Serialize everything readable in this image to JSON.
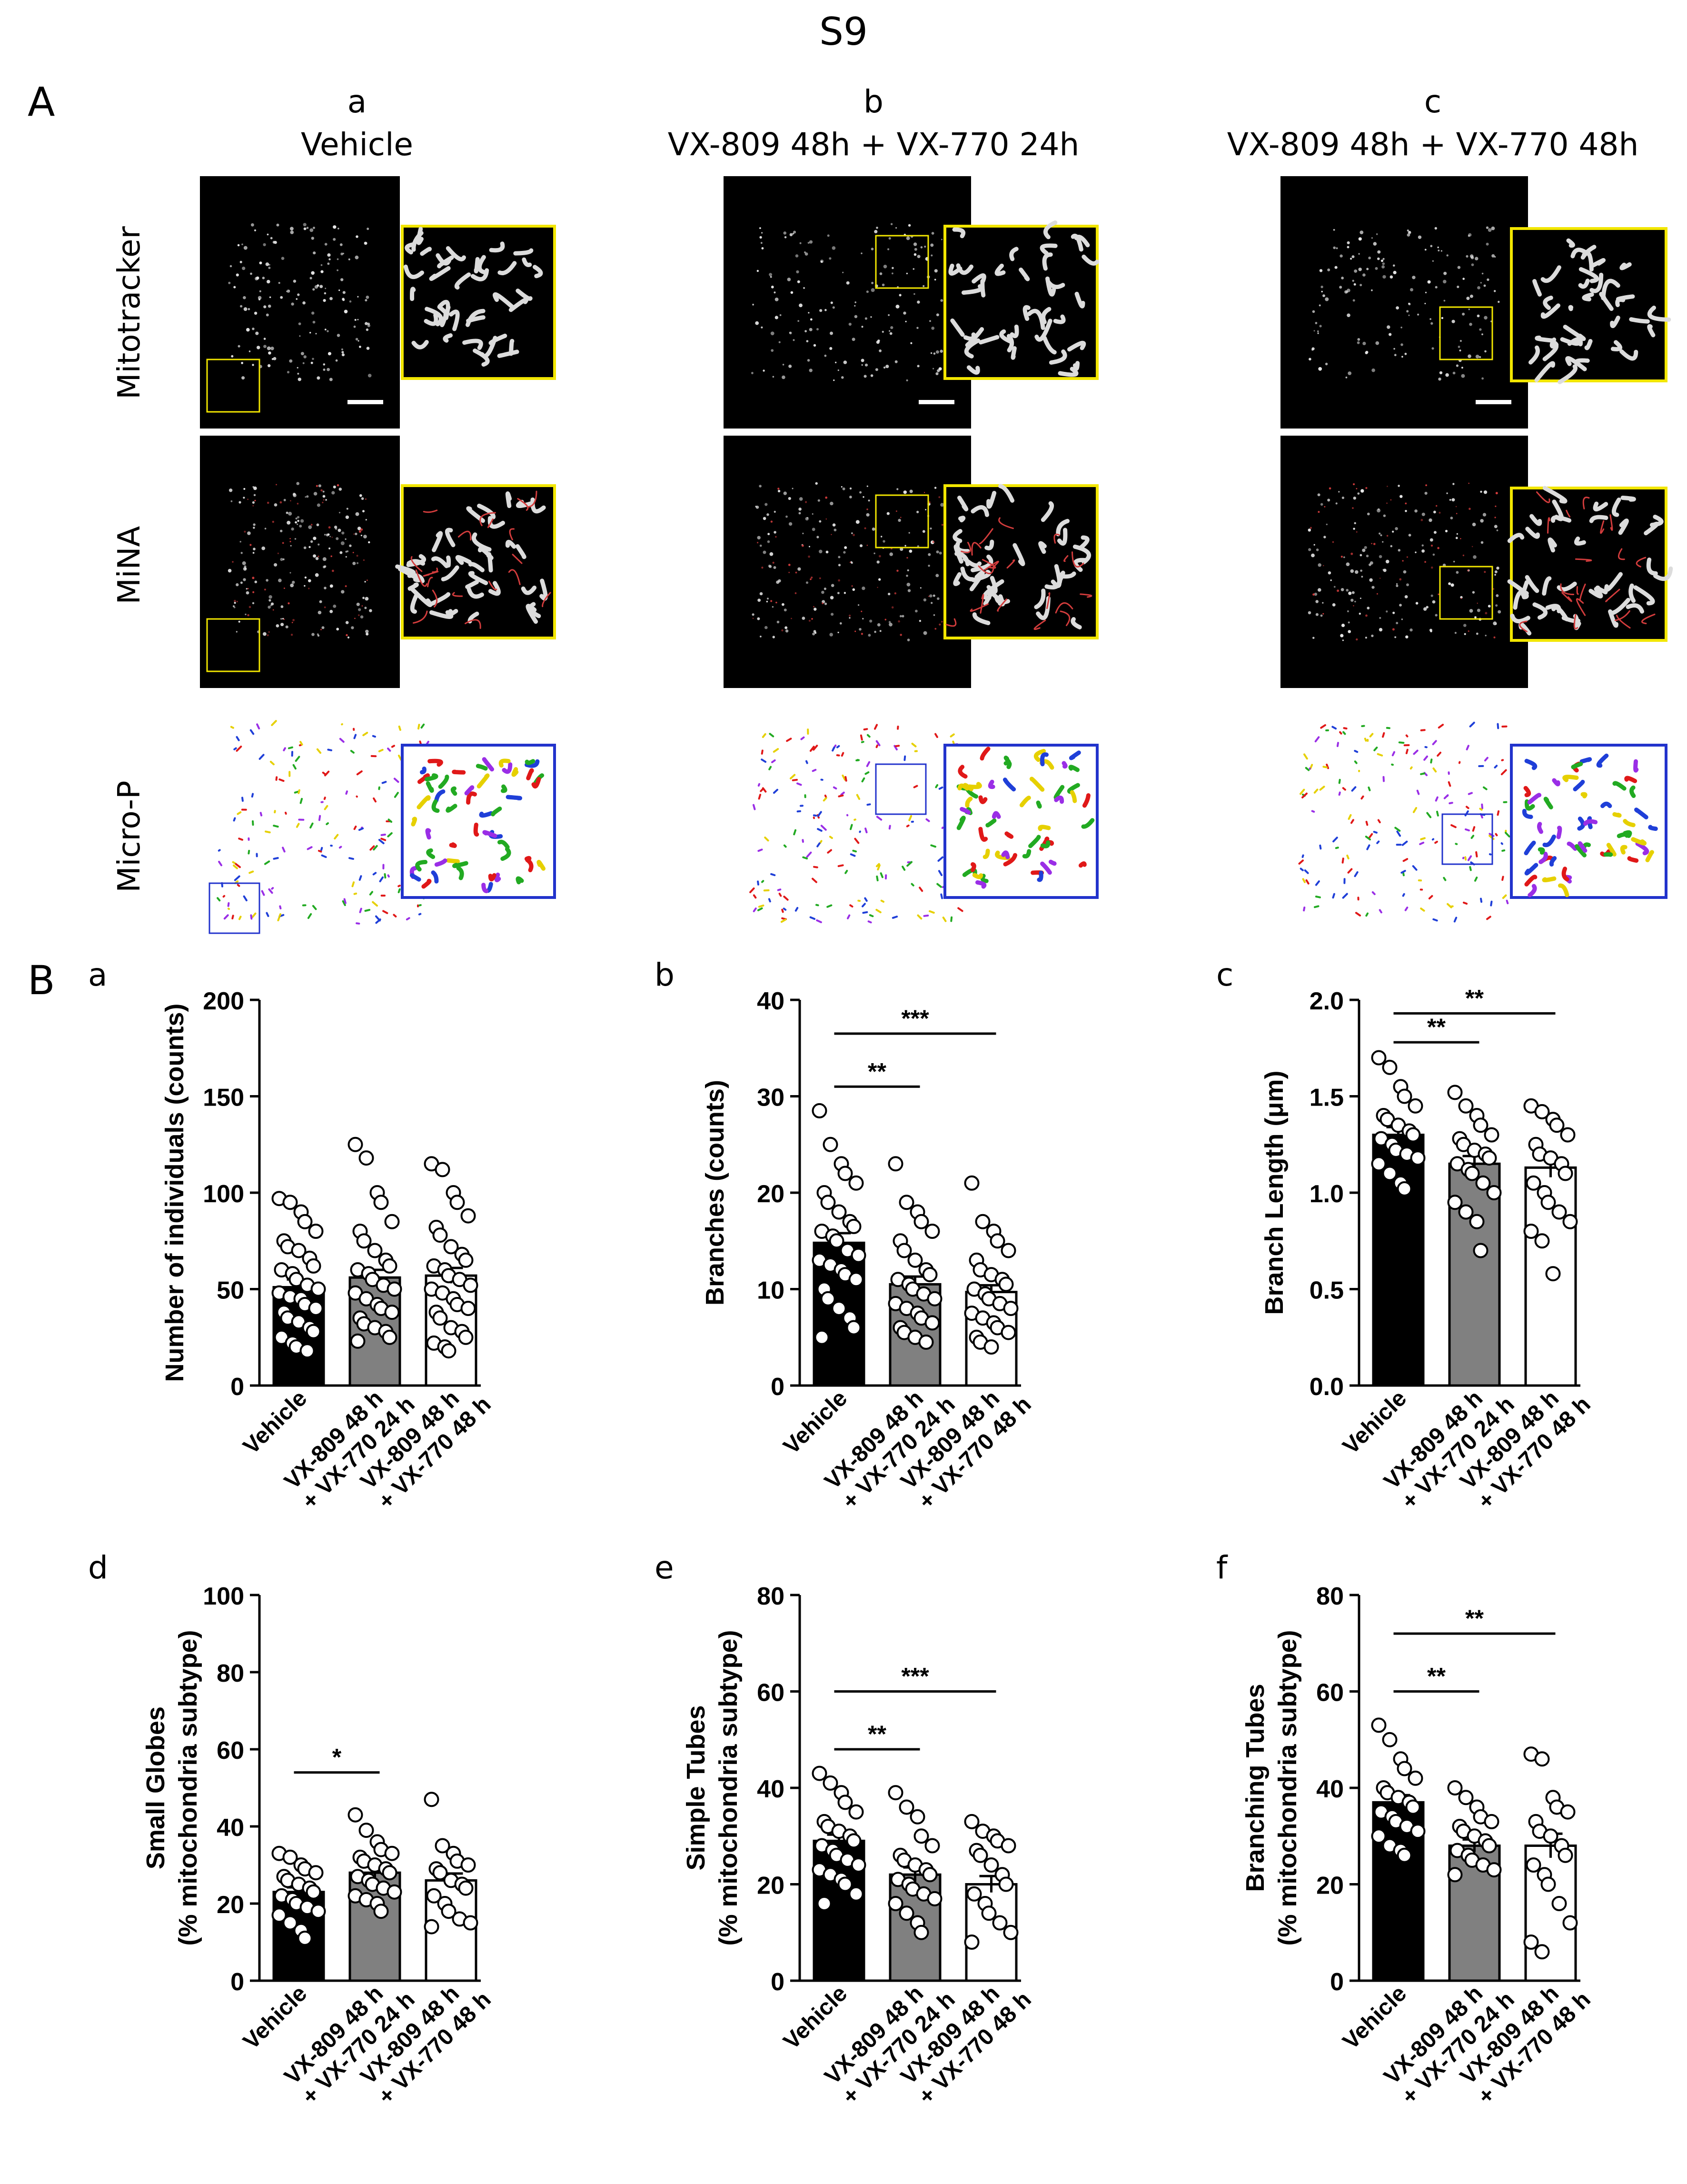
{
  "figure": {
    "title": "S9",
    "panel_A": "A",
    "panel_B": "B",
    "columns": [
      {
        "letter": "a",
        "title": "Vehicle"
      },
      {
        "letter": "b",
        "title": "VX-809 48h + VX-770 24h"
      },
      {
        "letter": "c",
        "title": "VX-809 48h + VX-770 48h"
      }
    ],
    "rows": [
      "Mitotracker",
      "MiNA",
      "Micro-P"
    ]
  },
  "colors": {
    "vehicle_bar": "#000000",
    "vx24_bar": "#808080",
    "vx48_bar": "#ffffff",
    "inset_yellow": "#f2e600",
    "inset_blue": "#2233cc",
    "micro_p_purple": "#9a2ee6",
    "micro_p_green": "#22aa22",
    "micro_p_yellow": "#e6d000",
    "micro_p_blue": "#1f3fd8",
    "micro_p_red": "#e01818",
    "mina_red": "#d23c3c"
  },
  "chart_data": [
    {
      "id": "a",
      "letter": "a",
      "type": "bar",
      "categories": [
        "Vehicle",
        "VX-809 48 h\n+ VX-770 24 h",
        "VX-809 48 h\n+ VX-770 48 h"
      ],
      "values": [
        51,
        56,
        57
      ],
      "errors": [
        4,
        4,
        4
      ],
      "ylabel": "Number of individuals (counts)",
      "ylabel2": "",
      "ylim": [
        0,
        200
      ],
      "yticks": [
        0,
        50,
        100,
        150,
        200
      ],
      "points": [
        [
          97,
          95,
          90,
          85,
          80,
          75,
          72,
          70,
          66,
          62,
          60,
          58,
          55,
          52,
          50,
          48,
          46,
          45,
          42,
          40,
          38,
          35,
          33,
          30,
          28,
          25,
          22,
          20,
          18
        ],
        [
          125,
          118,
          100,
          95,
          85,
          80,
          75,
          70,
          65,
          62,
          60,
          58,
          55,
          52,
          50,
          48,
          45,
          42,
          40,
          38,
          35,
          32,
          30,
          28,
          25,
          23
        ],
        [
          115,
          112,
          100,
          95,
          88,
          82,
          78,
          72,
          68,
          65,
          62,
          60,
          57,
          55,
          52,
          50,
          48,
          45,
          42,
          40,
          38,
          35,
          30,
          28,
          25,
          22,
          20,
          18
        ]
      ],
      "significance": []
    },
    {
      "id": "b",
      "letter": "b",
      "type": "bar",
      "categories": [
        "Vehicle",
        "VX-809 48 h\n+ VX-770 24 h",
        "VX-809 48 h\n+ VX-770 48 h"
      ],
      "values": [
        14.8,
        10.5,
        9.7
      ],
      "errors": [
        1.0,
        0.8,
        0.7
      ],
      "ylabel": "Branches (counts)",
      "ylabel2": "",
      "ylim": [
        0,
        40
      ],
      "yticks": [
        0,
        10,
        20,
        30,
        40
      ],
      "points": [
        [
          28.5,
          25,
          23,
          22,
          21,
          20,
          19,
          18,
          17,
          16.5,
          16,
          15.5,
          15,
          14,
          13.5,
          13,
          12.5,
          12,
          11.5,
          11,
          10,
          9,
          8,
          7,
          6,
          5
        ],
        [
          23,
          19,
          18,
          17,
          16,
          15,
          14,
          13,
          12,
          11.5,
          11,
          10.5,
          10,
          9.5,
          9,
          8.5,
          8,
          7.5,
          7,
          6.5,
          6,
          5.5,
          5,
          4.5
        ],
        [
          21,
          17,
          16,
          15,
          14,
          13,
          12,
          11.5,
          11,
          10.5,
          10,
          9.5,
          9,
          8.5,
          8,
          7.5,
          7,
          6.5,
          6,
          5.5,
          5,
          4.5,
          4
        ]
      ],
      "significance": [
        {
          "from": 0,
          "to": 1,
          "label": "**",
          "y": 31
        },
        {
          "from": 0,
          "to": 2,
          "label": "***",
          "y": 36.5
        }
      ]
    },
    {
      "id": "c",
      "letter": "c",
      "type": "bar",
      "categories": [
        "Vehicle",
        "VX-809 48 h\n+ VX-770 24 h",
        "VX-809 48 h\n+ VX-770 48 h"
      ],
      "values": [
        1.3,
        1.15,
        1.13
      ],
      "errors": [
        0.04,
        0.04,
        0.05
      ],
      "ylabel": "Branch Length (μm)",
      "ylabel2": "",
      "ylim": [
        0,
        2.0
      ],
      "yticks": [
        0.0,
        0.5,
        1.0,
        1.5,
        2.0
      ],
      "tickdecimals": 1,
      "points": [
        [
          1.7,
          1.65,
          1.55,
          1.5,
          1.45,
          1.4,
          1.38,
          1.35,
          1.32,
          1.3,
          1.28,
          1.25,
          1.22,
          1.2,
          1.18,
          1.15,
          1.1,
          1.05,
          1.02
        ],
        [
          1.52,
          1.45,
          1.4,
          1.35,
          1.3,
          1.28,
          1.25,
          1.22,
          1.2,
          1.18,
          1.15,
          1.12,
          1.1,
          1.05,
          1.0,
          0.95,
          0.9,
          0.85,
          0.7
        ],
        [
          1.45,
          1.42,
          1.38,
          1.35,
          1.3,
          1.25,
          1.2,
          1.18,
          1.15,
          1.1,
          1.05,
          1.0,
          0.95,
          0.9,
          0.85,
          0.8,
          0.75,
          0.58
        ]
      ],
      "significance": [
        {
          "from": 0,
          "to": 1,
          "label": "**",
          "y": 1.78
        },
        {
          "from": 0,
          "to": 2,
          "label": "**",
          "y": 1.93
        }
      ]
    },
    {
      "id": "d",
      "letter": "d",
      "type": "bar",
      "categories": [
        "Vehicle",
        "VX-809 48 h\n+ VX-770 24 h",
        "VX-809 48 h\n+ VX-770 48 h"
      ],
      "values": [
        23,
        28,
        26
      ],
      "errors": [
        1.2,
        1.5,
        1.8
      ],
      "ylabel": "Small Globes",
      "ylabel2": "(% mitochondria subtype)",
      "ylim": [
        0,
        100
      ],
      "yticks": [
        0,
        20,
        40,
        60,
        80,
        100
      ],
      "points": [
        [
          33,
          32,
          30,
          29,
          28,
          27,
          26,
          25,
          24,
          23,
          22,
          21,
          20,
          19,
          18,
          17,
          15,
          13,
          11
        ],
        [
          43,
          39,
          36,
          34,
          33,
          32,
          31,
          30,
          29,
          28,
          27,
          26,
          25,
          24,
          23,
          22,
          21,
          20,
          18
        ],
        [
          47,
          35,
          33,
          31,
          30,
          29,
          28,
          26,
          25,
          24,
          22,
          20,
          18,
          16,
          15,
          14
        ]
      ],
      "significance": [
        {
          "from": 0,
          "to": 1,
          "label": "*",
          "y": 54
        }
      ]
    },
    {
      "id": "e",
      "letter": "e",
      "type": "bar",
      "categories": [
        "Vehicle",
        "VX-809 48 h\n+ VX-770 24 h",
        "VX-809 48 h\n+ VX-770 48 h"
      ],
      "values": [
        29,
        22,
        20
      ],
      "errors": [
        1.3,
        1.5,
        1.7
      ],
      "ylabel": "Simple Tubes",
      "ylabel2": "(% mitochondria subtype)",
      "ylim": [
        0,
        80
      ],
      "yticks": [
        0,
        20,
        40,
        60,
        80
      ],
      "points": [
        [
          43,
          41,
          39,
          37,
          35,
          33,
          32,
          31,
          30,
          29,
          28,
          27,
          26,
          25,
          24,
          23,
          22,
          21,
          20,
          18,
          16
        ],
        [
          39,
          36,
          34,
          30,
          28,
          26,
          25,
          24,
          23,
          22,
          21,
          20,
          19,
          18,
          17,
          16,
          14,
          12,
          10
        ],
        [
          33,
          31,
          30,
          29,
          28,
          27,
          26,
          24,
          22,
          20,
          18,
          16,
          14,
          12,
          10,
          8
        ]
      ],
      "significance": [
        {
          "from": 0,
          "to": 1,
          "label": "**",
          "y": 48
        },
        {
          "from": 0,
          "to": 2,
          "label": "***",
          "y": 60
        }
      ]
    },
    {
      "id": "f",
      "letter": "f",
      "type": "bar",
      "categories": [
        "Vehicle",
        "VX-809 48 h\n+ VX-770 24 h",
        "VX-809 48 h\n+ VX-770 48 h"
      ],
      "values": [
        37,
        28,
        28
      ],
      "errors": [
        1.5,
        1.3,
        2.5
      ],
      "ylabel": "Branching Tubes",
      "ylabel2": "(% mitochondria subtype)",
      "ylim": [
        0,
        80
      ],
      "yticks": [
        0,
        20,
        40,
        60,
        80
      ],
      "points": [
        [
          53,
          50,
          46,
          44,
          42,
          40,
          39,
          38,
          37,
          36,
          35,
          34,
          33,
          32,
          31,
          30,
          28,
          27,
          26
        ],
        [
          40,
          38,
          36,
          34,
          33,
          32,
          31,
          30,
          29,
          28,
          27,
          26,
          25,
          24,
          23,
          22
        ],
        [
          47,
          46,
          38,
          36,
          35,
          33,
          31,
          30,
          28,
          26,
          24,
          22,
          20,
          16,
          12,
          8,
          6
        ]
      ],
      "significance": [
        {
          "from": 0,
          "to": 1,
          "label": "**",
          "y": 60
        },
        {
          "from": 0,
          "to": 2,
          "label": "**",
          "y": 72
        }
      ]
    }
  ]
}
